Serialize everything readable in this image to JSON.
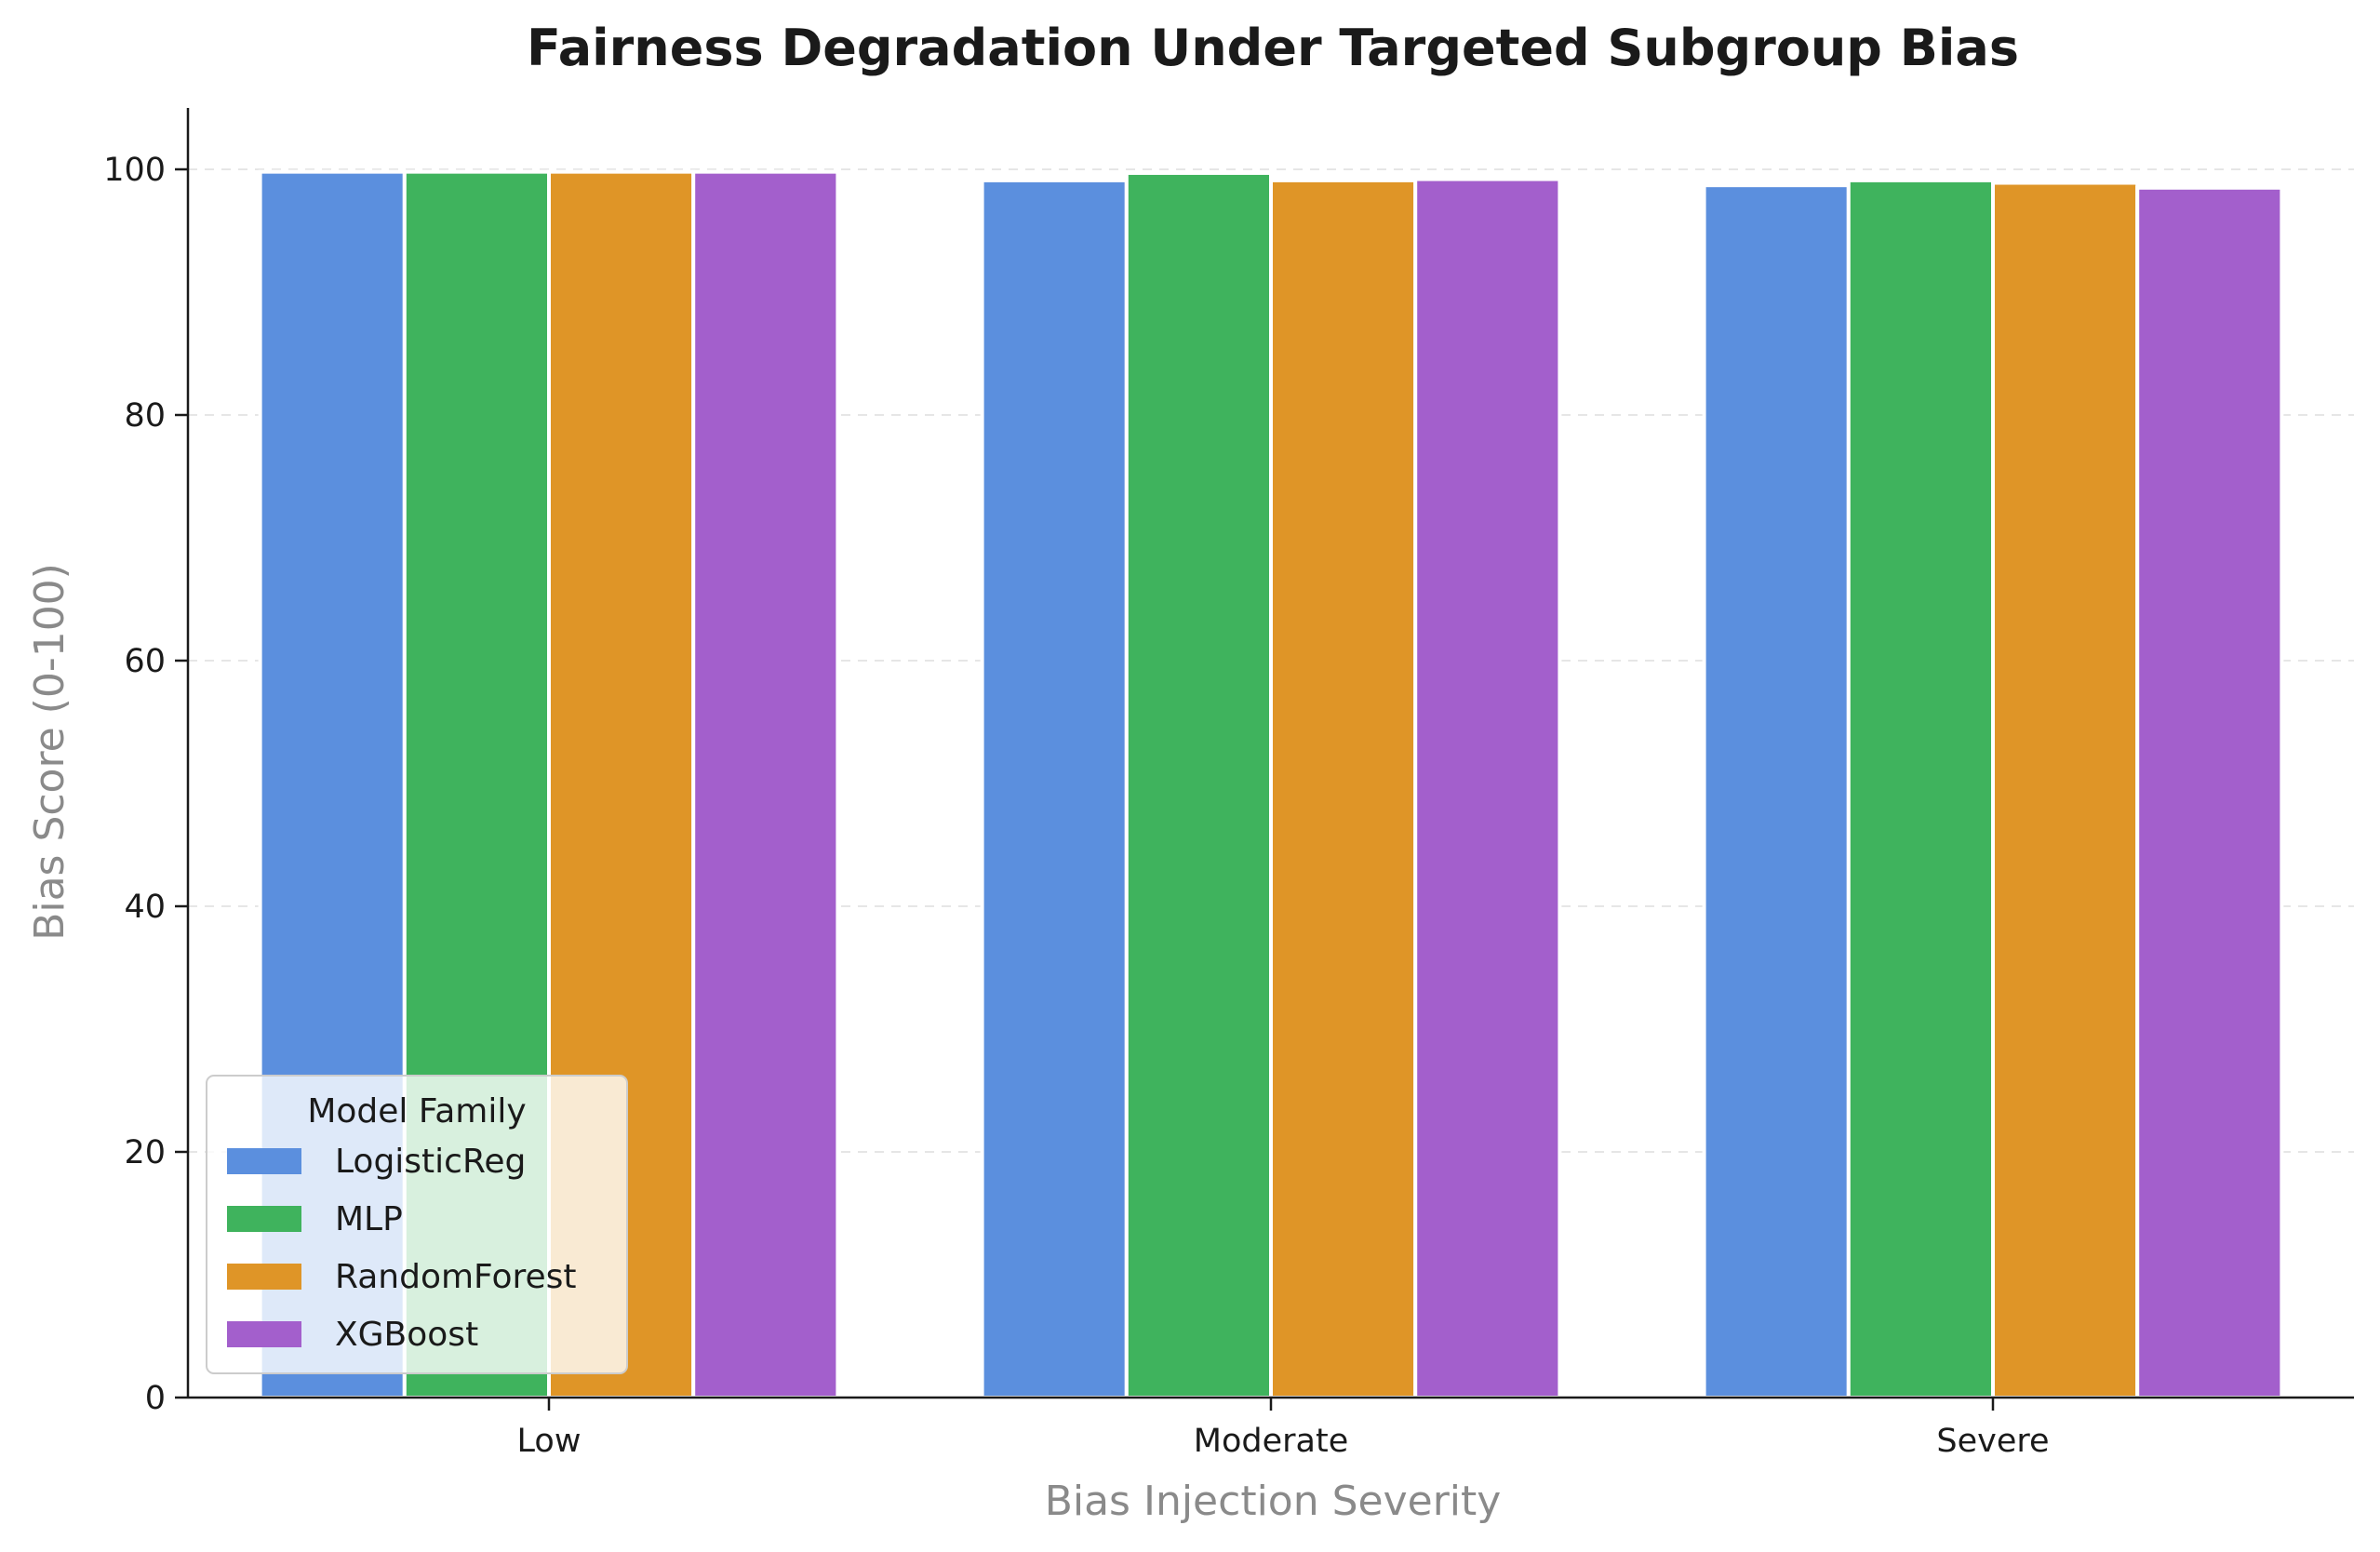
{
  "chart_data": {
    "type": "bar",
    "title": "Fairness Degradation Under Targeted Subgroup Bias",
    "xlabel": "Bias Injection Severity",
    "ylabel": "Bias Score (0-100)",
    "categories": [
      "Low",
      "Moderate",
      "Severe"
    ],
    "series": [
      {
        "name": "LogisticReg",
        "values": [
          99.8,
          99.1,
          98.7
        ],
        "color": "#5b8fde"
      },
      {
        "name": "MLP",
        "values": [
          99.8,
          99.7,
          99.1
        ],
        "color": "#3fb35d"
      },
      {
        "name": "RandomForest",
        "values": [
          99.8,
          99.1,
          98.9
        ],
        "color": "#df9527"
      },
      {
        "name": "XGBoost",
        "values": [
          99.8,
          99.2,
          98.5
        ],
        "color": "#a35fcc"
      }
    ],
    "ylim": [
      0,
      105
    ],
    "yticks": [
      0,
      20,
      40,
      60,
      80,
      100
    ],
    "grid": "horizontal dashed",
    "legend_title": "Model Family",
    "legend_position": "lower-left"
  }
}
